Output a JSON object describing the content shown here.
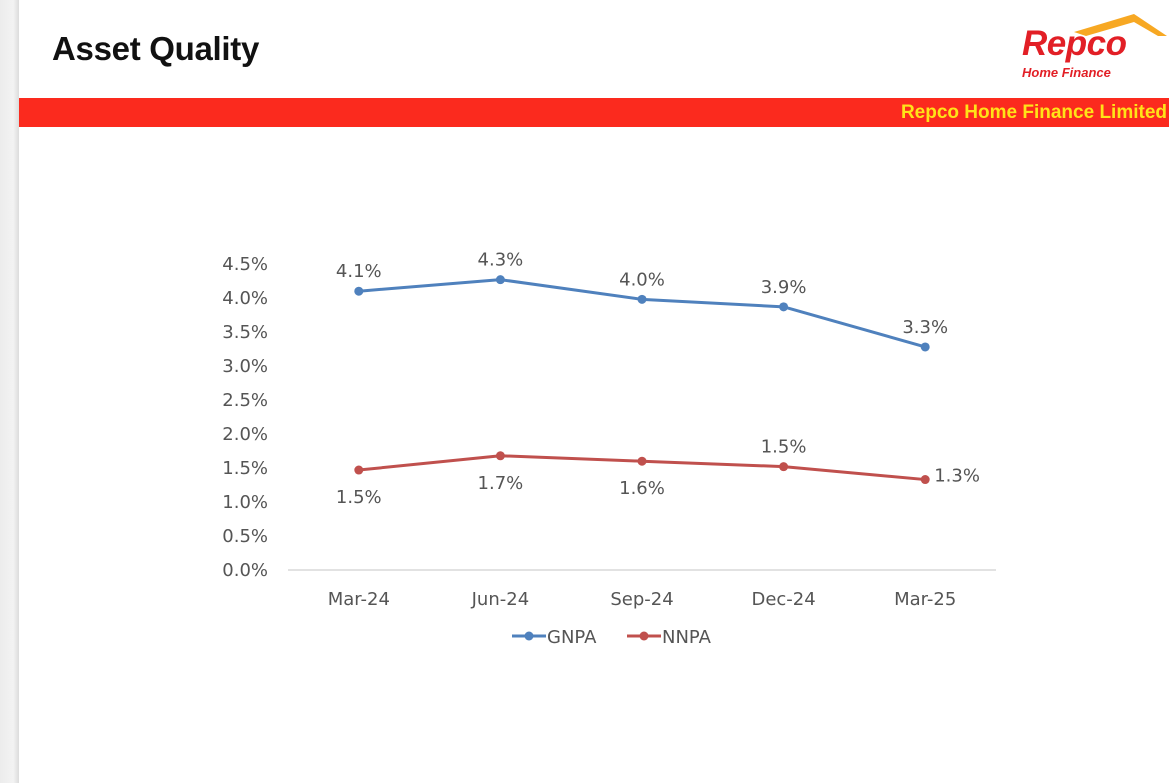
{
  "header": {
    "title": "Asset Quality",
    "logo_word": "Repco",
    "logo_sub": "Home Finance",
    "banner_text": "Repco Home Finance Limited"
  },
  "colors": {
    "banner": "#fb2a1e",
    "banner_text": "#ffe318",
    "logo": "#e21f26",
    "logo_roof": "#f7a823",
    "gnpa": "#4f81bd",
    "nnpa": "#c0504d"
  },
  "chart_data": {
    "type": "line",
    "title": "",
    "xlabel": "",
    "ylabel": "",
    "categories": [
      "Mar-24",
      "Jun-24",
      "Sep-24",
      "Dec-24",
      "Mar-25"
    ],
    "ylim": [
      0,
      4.5
    ],
    "ytick_values": [
      0,
      0.5,
      1.0,
      1.5,
      2.0,
      2.5,
      3.0,
      3.5,
      4.0,
      4.5
    ],
    "ytick_labels": [
      "0.0%",
      "0.5%",
      "1.0%",
      "1.5%",
      "2.0%",
      "2.5%",
      "3.0%",
      "3.5%",
      "4.0%",
      "4.5%"
    ],
    "grid": false,
    "legend_position": "bottom",
    "series": [
      {
        "name": "GNPA",
        "values": [
          4.1,
          4.27,
          3.98,
          3.87,
          3.28
        ],
        "labels": [
          "4.1%",
          "4.3%",
          "4.0%",
          "3.9%",
          "3.3%"
        ],
        "label_position": "above",
        "color": "#4f81bd"
      },
      {
        "name": "NNPA",
        "values": [
          1.47,
          1.68,
          1.6,
          1.52,
          1.33
        ],
        "labels": [
          "1.5%",
          "1.7%",
          "1.6%",
          "1.5%",
          "1.3%"
        ],
        "label_position": [
          "below",
          "below",
          "below",
          "above",
          "right"
        ],
        "color": "#c0504d"
      }
    ]
  }
}
